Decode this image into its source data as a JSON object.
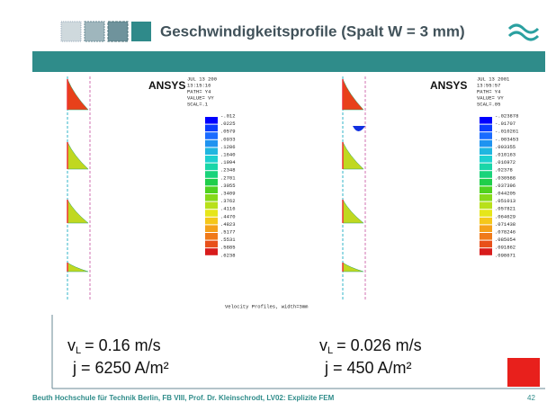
{
  "header": {
    "title": "Geschwindigkeitsprofile (Spalt  W = 3 mm)"
  },
  "plots": [
    {
      "logo": "ANSYS",
      "info": [
        "JUL 13 200",
        "13:15:16",
        "PATH= Y4",
        "VALUE= VY",
        "SCAL=.1"
      ],
      "legend": [
        "-.012",
        ".0225",
        ".0579",
        ".0933",
        ".1286",
        ".1640",
        ".1994",
        ".2348",
        ".2701",
        ".3055",
        ".3409",
        ".3762",
        ".4116",
        ".4470",
        ".4823",
        ".5177",
        ".5531",
        ".5885",
        ".6238"
      ]
    },
    {
      "logo": "ANSYS",
      "info": [
        "JUL 13 2001",
        "13:55:57",
        "PATH= Y4",
        "VALUE= VY",
        "SCAL=.05"
      ],
      "legend": [
        "-.023878",
        "-.01707",
        "-.010261",
        "-.003453",
        ".003355",
        ".010163",
        ".016972",
        ".02378",
        ".030588",
        ".037396",
        ".044205",
        ".051013",
        ".057821",
        ".064629",
        ".071438",
        ".078246",
        ".085054",
        ".091862",
        ".098671"
      ]
    }
  ],
  "caption": "Velocity Profiles, width=3mm",
  "cases": [
    {
      "symbol": "v",
      "subscript": "L",
      "velocity": "=  0.16  m/s",
      "current": "j =  6250  A/m²"
    },
    {
      "symbol": "v",
      "subscript": "L",
      "velocity": "= 0.026 m/s",
      "current": "j =  450  A/m²"
    }
  ],
  "footer": {
    "text": "Beuth Hochschule für Technik Berlin, FB VIII, Prof. Dr. Kleinschrodt, LV02: Explizite FEM",
    "page": "42"
  }
}
